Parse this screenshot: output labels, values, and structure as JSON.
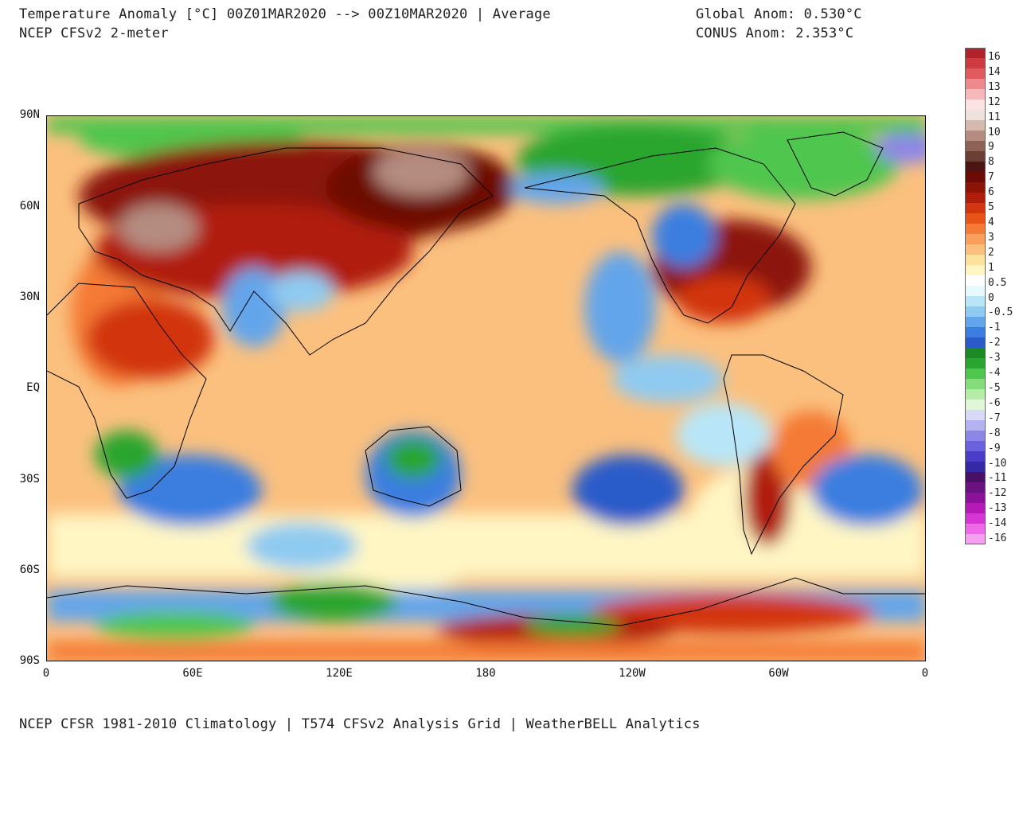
{
  "header": {
    "title_line1": "Temperature Anomaly [°C] 00Z01MAR2020 --> 00Z10MAR2020 | Average",
    "title_line2": "NCEP CFSv2 2-meter",
    "global_anom": "Global Anom: 0.530°C",
    "conus_anom": "CONUS Anom: 2.353°C"
  },
  "footer": {
    "text": "NCEP CFSR 1981-2010 Climatology | T574 CFSv2 Analysis Grid | WeatherBELL Analytics"
  },
  "axes": {
    "lat_labels": [
      "90N",
      "60N",
      "30N",
      "EQ",
      "30S",
      "60S",
      "90S"
    ],
    "lon_labels": [
      "0",
      "60E",
      "120E",
      "180",
      "120W",
      "60W",
      "0"
    ]
  },
  "colorbar": {
    "labels": [
      "16",
      "14",
      "13",
      "12",
      "11",
      "10",
      "9",
      "8",
      "7",
      "6",
      "5",
      "4",
      "3",
      "2",
      "1",
      "0.5",
      "0",
      "-0.5",
      "-1",
      "-2",
      "-3",
      "-4",
      "-5",
      "-6",
      "-7",
      "-8",
      "-9",
      "-10",
      "-11",
      "-12",
      "-13",
      "-14",
      "-16"
    ],
    "colors": [
      "#b2222a",
      "#cd3b41",
      "#e05a5e",
      "#ee8a8c",
      "#f7b8b9",
      "#fbe3e3",
      "#efe1dc",
      "#d6b9ae",
      "#b58c80",
      "#8e6257",
      "#6b3e36",
      "#4a1512",
      "#6d0a06",
      "#8c1407",
      "#b01e0b",
      "#d2360f",
      "#e85418",
      "#f47a35",
      "#f8a05b",
      "#fbc07e",
      "#fde29e",
      "#fff6c4",
      "#ffffff",
      "#e8f8ff",
      "#b8e6f8",
      "#8fcaf1",
      "#63a5ea",
      "#3b7ee0",
      "#2a5bc9",
      "#1b8a24",
      "#2aa52f",
      "#4fc64d",
      "#84dc7a",
      "#b5eca8",
      "#e1f7da",
      "#d8d9f6",
      "#b4b2f0",
      "#8c86e6",
      "#6a61dc",
      "#4b3dc8",
      "#3529a6",
      "#4a1065",
      "#6a1280",
      "#8c1399",
      "#b51ab8",
      "#d836d4",
      "#ee6ae8",
      "#f5a0f0"
    ]
  },
  "map": {
    "description_colors": {
      "warm_strong": "#8c1407",
      "warm_mid": "#e85418",
      "warm_light": "#f8a05b",
      "neutral": "#fde29e",
      "cool_light": "#8fcaf1",
      "cool_mid": "#3b7ee0",
      "green": "#2aa52f",
      "taupe": "#b58c80",
      "purple": "#8c86e6"
    }
  }
}
